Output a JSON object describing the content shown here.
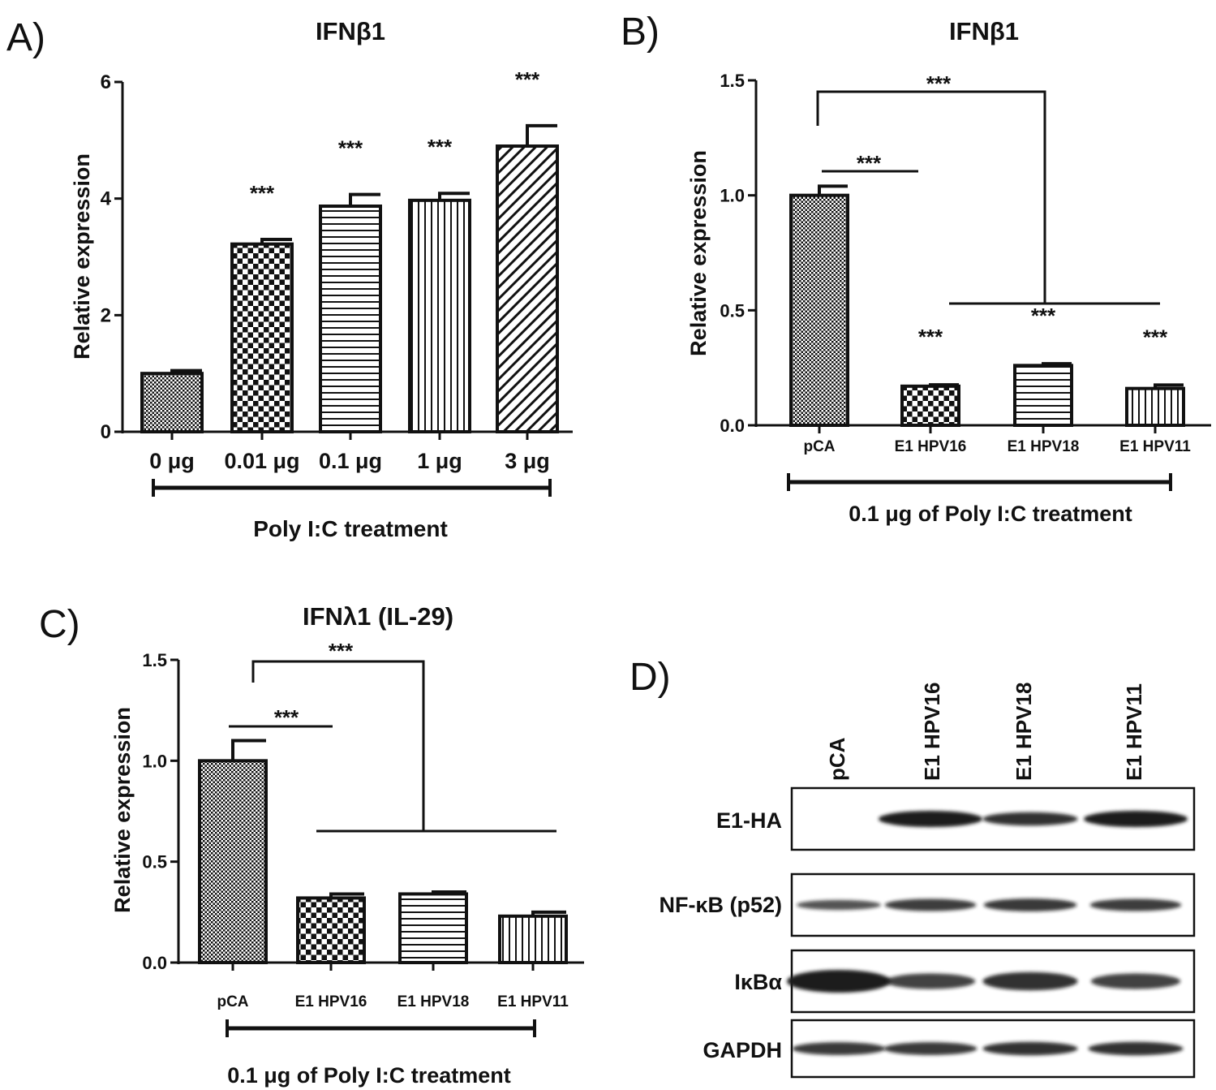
{
  "figure": {
    "colors": {
      "ink": "#111111",
      "background": "#ffffff",
      "band": "#1a1a1a",
      "bar_fill": "#ffffff"
    },
    "panel_d": {
      "label": "D)",
      "lanes": [
        "pCA",
        "E1 HPV16",
        "E1 HPV18",
        "E1 HPV11"
      ],
      "blots": [
        {
          "name": "E1-HA",
          "intensity": [
            0,
            1.0,
            0.75,
            1.0
          ]
        },
        {
          "name": "NF-κB (p52)",
          "intensity": [
            0.45,
            0.65,
            0.7,
            0.65
          ]
        },
        {
          "name": "IκBα",
          "intensity": [
            1.0,
            0.6,
            0.75,
            0.6
          ]
        },
        {
          "name": "GAPDH",
          "intensity": [
            0.7,
            0.7,
            0.75,
            0.75
          ]
        }
      ]
    }
  },
  "chart_data": [
    {
      "panel": "A)",
      "type": "bar",
      "title": "IFNβ1",
      "ylabel": "Relative expression",
      "xlabel": "Poly I:C treatment",
      "ylim": [
        0,
        6
      ],
      "yticks": [
        "0",
        "2",
        "4",
        "6"
      ],
      "ytick_values": [
        0,
        2,
        4,
        6
      ],
      "categories": [
        "0 μg",
        "0.01 μg",
        "0.1 μg",
        "1 μg",
        "3 μg"
      ],
      "values": [
        1.0,
        3.22,
        3.87,
        3.97,
        4.9
      ],
      "errors": [
        0.05,
        0.08,
        0.2,
        0.12,
        0.35
      ],
      "patterns": [
        "fine",
        "checker",
        "hlines",
        "vlines",
        "diag"
      ],
      "significance": [
        "",
        "***",
        "***",
        "***",
        "***"
      ],
      "brackets": []
    },
    {
      "panel": "B)",
      "type": "bar",
      "title": "IFNβ1",
      "ylabel": "Relative expression",
      "xlabel": "0.1 μg of Poly I:C treatment",
      "ylim": [
        0,
        1.5
      ],
      "yticks": [
        "0.0",
        "0.5",
        "1.0",
        "1.5"
      ],
      "ytick_values": [
        0,
        0.5,
        1.0,
        1.5
      ],
      "categories": [
        "pCA",
        "E1 HPV16",
        "E1 HPV18",
        "E1 HPV11"
      ],
      "values": [
        1.0,
        0.17,
        0.26,
        0.16
      ],
      "errors": [
        0.04,
        0.006,
        0.008,
        0.015
      ],
      "patterns": [
        "fine",
        "checker",
        "hlines",
        "vlines"
      ],
      "significance": [
        "",
        "***",
        "***",
        "***"
      ],
      "brackets": [
        "***",
        "***"
      ]
    },
    {
      "panel": "C)",
      "type": "bar",
      "title": "IFNλ1 (IL-29)",
      "ylabel": "Relative expression",
      "xlabel": "0.1 μg of Poly I:C treatment",
      "ylim": [
        0,
        1.5
      ],
      "yticks": [
        "0.0",
        "0.5",
        "1.0",
        "1.5"
      ],
      "ytick_values": [
        0,
        0.5,
        1.0,
        1.5
      ],
      "categories": [
        "pCA",
        "E1 HPV16",
        "E1 HPV18",
        "E1 HPV11"
      ],
      "values": [
        1.0,
        0.32,
        0.34,
        0.23
      ],
      "errors": [
        0.1,
        0.02,
        0.01,
        0.02
      ],
      "patterns": [
        "fine",
        "checker",
        "hlines",
        "vlines"
      ],
      "significance": [
        "",
        "",
        "",
        ""
      ],
      "brackets": [
        "***",
        "***"
      ]
    }
  ]
}
